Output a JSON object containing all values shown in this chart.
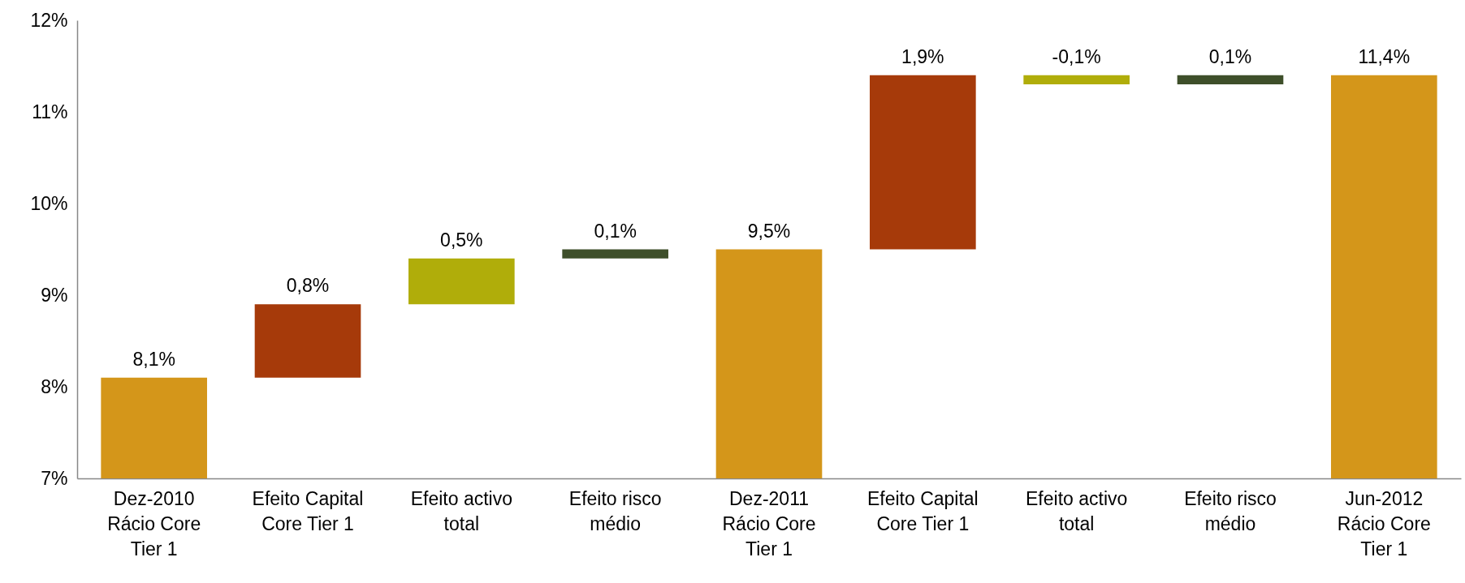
{
  "chart_data": {
    "type": "bar",
    "categories": [
      "Dez-2010\nRácio Core\nTier 1",
      "Efeito Capital\nCore Tier 1",
      "Efeito activo\ntotal",
      "Efeito risco\nmédio",
      "Dez-2011\nRácio Core\nTier 1",
      "Efeito Capital\nCore Tier 1",
      "Efeito activo\ntotal",
      "Efeito risco\nmédio",
      "Jun-2012\nRácio Core\nTier 1"
    ],
    "values": [
      8.1,
      0.8,
      0.5,
      0.1,
      9.5,
      1.9,
      -0.1,
      0.1,
      11.4
    ],
    "base": [
      null,
      8.1,
      8.9,
      9.4,
      null,
      9.5,
      11.4,
      11.3,
      null
    ],
    "colors": [
      "#d4961a",
      "#a63a0a",
      "#b0ad0a",
      "#3e4f2a",
      "#d4961a",
      "#a63a0a",
      "#b0ad0a",
      "#3e4f2a",
      "#d4961a"
    ],
    "value_labels": [
      "8,1%",
      "0,8%",
      "0,5%",
      "0,1%",
      "9,5%",
      "1,9%",
      "-0,1%",
      "0,1%",
      "11,4%"
    ],
    "ylim": [
      7,
      12
    ],
    "yticks": [
      {
        "value": 7,
        "label": "7%"
      },
      {
        "value": 8,
        "label": "8%"
      },
      {
        "value": 9,
        "label": "9%"
      },
      {
        "value": 10,
        "label": "10%"
      },
      {
        "value": 11,
        "label": "11%"
      },
      {
        "value": 12,
        "label": "12%"
      }
    ],
    "grid": false,
    "legend": false
  }
}
